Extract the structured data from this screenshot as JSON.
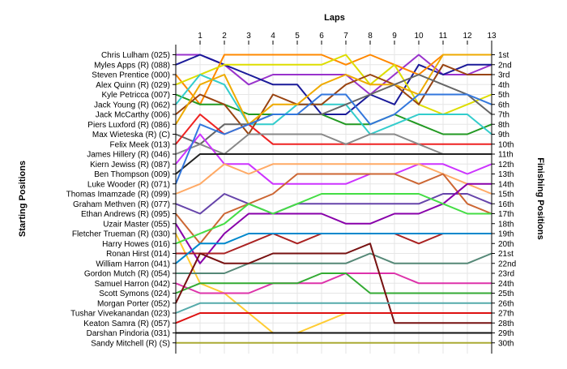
{
  "chart_data": {
    "type": "line",
    "title": "Laps",
    "ylabel_left": "Starting Positions",
    "ylabel_right": "Finishing Positions",
    "x_ticks": [
      "1",
      "2",
      "3",
      "4",
      "5",
      "6",
      "7",
      "8",
      "9",
      "10",
      "11",
      "12",
      "13"
    ],
    "finish_labels": [
      "1st",
      "2nd",
      "3rd",
      "4th",
      "5th",
      "6th",
      "7th",
      "8th",
      "9th",
      "10th",
      "11th",
      "12th",
      "13th",
      "14th",
      "15th",
      "16th",
      "17th",
      "18th",
      "19th",
      "20th",
      "21st",
      "22nd",
      "23rd",
      "24th",
      "25th",
      "26th",
      "27th",
      "28th",
      "29th",
      "30th"
    ],
    "drivers": [
      {
        "name": "Chris Lulham (025)",
        "color": "#9933cc",
        "pos": [
          1,
          1,
          2,
          4,
          3,
          3,
          3,
          3,
          5,
          3,
          1,
          3,
          3,
          2
        ]
      },
      {
        "name": "Myles Apps  (R) (088)",
        "color": "#1a1a99",
        "pos": [
          2,
          1,
          2,
          3,
          4,
          4,
          7,
          7,
          5,
          6,
          2,
          3,
          2,
          2
        ]
      },
      {
        "name": "Steven Prentice (000)",
        "color": "#ff8800",
        "pos": [
          3,
          6,
          1,
          1,
          1,
          1,
          1,
          2,
          1,
          2,
          3,
          1,
          1,
          1
        ]
      },
      {
        "name": "Alex Quinn (R) (029)",
        "color": "#dddd00",
        "pos": [
          4,
          3,
          2,
          2,
          2,
          2,
          2,
          1,
          4,
          2,
          6,
          7,
          6,
          5
        ]
      },
      {
        "name": "Kyle Petricca (007)",
        "color": "#229922",
        "pos": [
          5,
          6,
          6,
          7,
          7,
          7,
          7,
          8,
          8,
          7,
          8,
          9,
          9,
          8
        ]
      },
      {
        "name": "Jack Young  (R) (062)",
        "color": "#33cccc",
        "pos": [
          6,
          3,
          4,
          8,
          8,
          6,
          6,
          6,
          9,
          8,
          7,
          7,
          7,
          9
        ]
      },
      {
        "name": "Jack McCarthy (006)",
        "color": "#994411",
        "pos": [
          7,
          5,
          6,
          9,
          5,
          6,
          6,
          4,
          3,
          4,
          6,
          2,
          3,
          3
        ]
      },
      {
        "name": "Piers Luxford (R) (086)",
        "color": "#eeaa00",
        "pos": [
          8,
          4,
          3,
          8,
          6,
          6,
          4,
          3,
          4,
          4,
          5,
          1,
          1,
          1
        ]
      },
      {
        "name": "Max Wieteska (R) (C)",
        "color": "#666666",
        "pos": [
          9,
          10,
          8,
          8,
          7,
          7,
          7,
          6,
          5,
          4,
          3,
          4,
          5,
          7
        ]
      },
      {
        "name": "Felix Meek (013)",
        "color": "#ee2222",
        "pos": [
          10,
          7,
          9,
          8,
          10,
          10,
          10,
          10,
          10,
          10,
          10,
          10,
          10,
          10
        ]
      },
      {
        "name": "James Hillery (R) (046)",
        "color": "#888888",
        "pos": [
          11,
          10,
          11,
          9,
          9,
          9,
          9,
          10,
          9,
          9,
          10,
          11,
          11,
          11
        ]
      },
      {
        "name": "Kiern Jewiss  (R) (087)",
        "color": "#cc33ff",
        "pos": [
          12,
          9,
          12,
          12,
          14,
          14,
          14,
          14,
          13,
          13,
          12,
          12,
          13,
          12
        ]
      },
      {
        "name": "Ben Thompson (009)",
        "color": "#222222",
        "pos": [
          13,
          11,
          11,
          11,
          11,
          11,
          11,
          11,
          11,
          11,
          11,
          11,
          11,
          11
        ]
      },
      {
        "name": "Luke Wooder (R) (071)",
        "color": "#3377dd",
        "pos": [
          14,
          8,
          9,
          8,
          7,
          7,
          5,
          5,
          8,
          7,
          5,
          5,
          5,
          6
        ]
      },
      {
        "name": "Thomas Imamzade (R) (099)",
        "color": "#ffaa66",
        "pos": [
          15,
          14,
          12,
          13,
          12,
          12,
          12,
          12,
          12,
          12,
          12,
          13,
          14,
          15
        ]
      },
      {
        "name": "Graham Methven (R) (077)",
        "color": "#6644aa",
        "pos": [
          16,
          17,
          15,
          16,
          17,
          16,
          16,
          16,
          16,
          16,
          16,
          15,
          15,
          16
        ]
      },
      {
        "name": "Ethan Andrews (R) (095)",
        "color": "#cc6633",
        "pos": [
          17,
          20,
          17,
          16,
          15,
          13,
          13,
          13,
          13,
          13,
          14,
          13,
          16,
          17
        ]
      },
      {
        "name": "Uzair Master (055)",
        "color": "#8800aa",
        "pos": [
          18,
          22,
          19,
          17,
          17,
          17,
          17,
          18,
          18,
          17,
          17,
          16,
          14,
          14
        ]
      },
      {
        "name": "Fletcher Trueman (R) (030)",
        "color": "#ffcc33",
        "pos": [
          19,
          24,
          25,
          27,
          29,
          29,
          28,
          27,
          27,
          27,
          27,
          27,
          27,
          27
        ]
      },
      {
        "name": "Harry Howes (016)",
        "color": "#44dd44",
        "pos": [
          20,
          19,
          18,
          16,
          17,
          16,
          15,
          15,
          15,
          15,
          15,
          16,
          17,
          17
        ]
      },
      {
        "name": "Ronan Hirst (014)",
        "color": "#aa2222",
        "pos": [
          21,
          21,
          21,
          20,
          19,
          20,
          19,
          19,
          19,
          19,
          20,
          19,
          19,
          19
        ]
      },
      {
        "name": "William Harron (041)",
        "color": "#0088cc",
        "pos": [
          22,
          20,
          20,
          19,
          19,
          19,
          19,
          19,
          19,
          19,
          19,
          19,
          19,
          19
        ]
      },
      {
        "name": "Gordon Mutch (R) (054)",
        "color": "#558877",
        "pos": [
          23,
          23,
          23,
          22,
          22,
          22,
          22,
          22,
          21,
          22,
          22,
          22,
          22,
          21
        ]
      },
      {
        "name": "Samuel Harron (042)",
        "color": "#dd33aa",
        "pos": [
          24,
          25,
          25,
          25,
          24,
          24,
          24,
          23,
          23,
          23,
          24,
          24,
          24,
          24
        ]
      },
      {
        "name": "Scott Symons (024)",
        "color": "#33aa33",
        "pos": [
          25,
          24,
          24,
          24,
          24,
          24,
          23,
          23,
          25,
          25,
          25,
          25,
          25,
          25
        ]
      },
      {
        "name": "Morgan Porter (052)",
        "color": "#771111",
        "pos": [
          26,
          21,
          22,
          22,
          21,
          21,
          21,
          21,
          20,
          28,
          28,
          28,
          28,
          28
        ]
      },
      {
        "name": "Tushar Vivekanandan (023)",
        "color": "#55aaaa",
        "pos": [
          27,
          26,
          26,
          26,
          26,
          26,
          26,
          26,
          26,
          26,
          26,
          26,
          26,
          26
        ]
      },
      {
        "name": "Keaton Samra (R) (057)",
        "color": "#dd1111",
        "pos": [
          28,
          27,
          27,
          27,
          27,
          27,
          27,
          27,
          27,
          27,
          27,
          27,
          27,
          27
        ]
      },
      {
        "name": "Darshan Pindoria (031)",
        "color": "#111111",
        "pos": [
          29,
          29,
          29,
          29,
          29,
          29,
          29,
          29,
          29,
          29,
          29,
          29,
          29,
          29
        ]
      },
      {
        "name": "Sandy Mitchell (R) (S)",
        "color": "#aaaa33",
        "pos": [
          30,
          30,
          30,
          30,
          30,
          30,
          30,
          30,
          30,
          30,
          30,
          30,
          30,
          30
        ]
      }
    ]
  }
}
